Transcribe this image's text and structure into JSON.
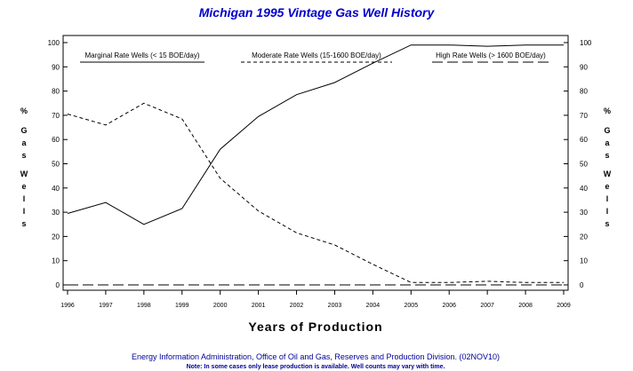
{
  "chart_data": {
    "type": "line",
    "title": "Michigan 1995 Vintage Gas Well History",
    "xlabel": "Years of Production",
    "ylabel_left": [
      "%",
      "G",
      "a",
      "s",
      "W",
      "e",
      "l",
      "l",
      "s"
    ],
    "ylabel_right": [
      "%",
      "G",
      "a",
      "s",
      "W",
      "e",
      "l",
      "l",
      "s"
    ],
    "x": [
      "1996",
      "1997",
      "1998",
      "1999",
      "2000",
      "2001",
      "2002",
      "2003",
      "2004",
      "2005",
      "2006",
      "2007",
      "2008",
      "2009"
    ],
    "ylim": [
      0,
      100
    ],
    "yticks": [
      "0",
      "10",
      "20",
      "30",
      "40",
      "50",
      "60",
      "70",
      "80",
      "90",
      "100"
    ],
    "grid": false,
    "legend_position": "top",
    "series": [
      {
        "name": "Marginal Rate Wells (< 15 BOE/day)",
        "style": "solid",
        "color": "#000000",
        "values": [
          29.5,
          34,
          25,
          31.5,
          56,
          69.5,
          78.5,
          83.5,
          91.5,
          99,
          99,
          98.5,
          99,
          99
        ]
      },
      {
        "name": "Moderate Rate Wells (15-1600 BOE/day)",
        "style": "short-dash",
        "color": "#000000",
        "values": [
          70.5,
          66,
          75,
          68.5,
          44,
          30.5,
          21.5,
          16.5,
          8.5,
          1,
          1,
          1.5,
          1,
          1
        ]
      },
      {
        "name": "High Rate Wells (> 1600 BOE/day)",
        "style": "long-dash",
        "color": "#000000",
        "values": [
          0,
          0,
          0,
          0,
          0,
          0,
          0,
          0,
          0,
          0,
          0,
          0,
          0,
          0
        ]
      }
    ]
  },
  "colors": {
    "title": "#0000cc",
    "footer": "#000099",
    "axes": "#000000"
  },
  "footer": {
    "source": "Energy Information Administration, Office of Oil and Gas, Reserves and Production Division. (02NOV10)",
    "note": "Note: In some cases only lease production is available. Well counts may vary with time."
  }
}
